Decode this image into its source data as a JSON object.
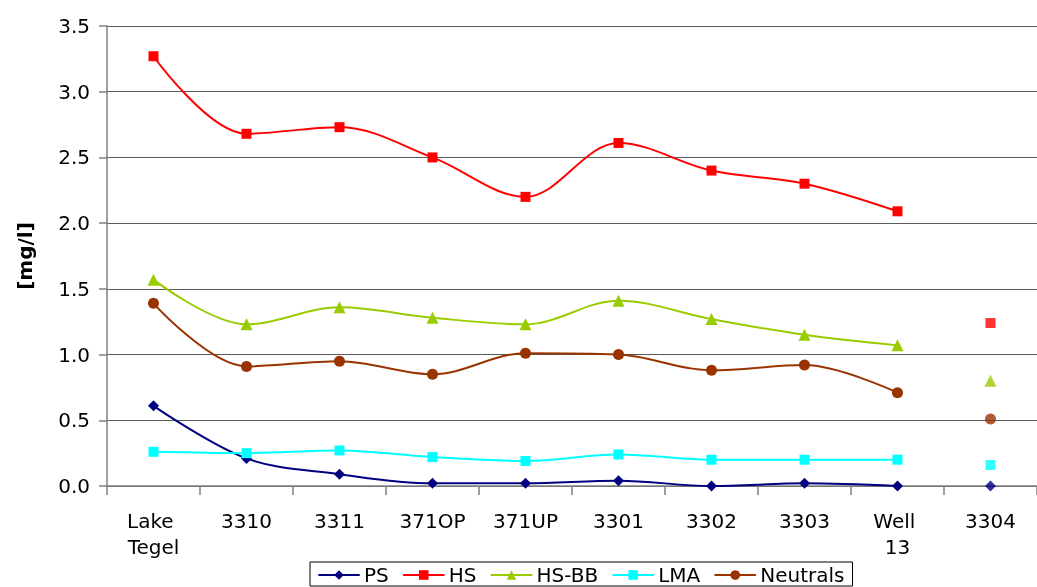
{
  "chart_data": {
    "type": "line",
    "ylabel": "[mg/l]",
    "categories": [
      "Lake Tegel",
      "3310",
      "3311",
      "371OP",
      "371UP",
      "3301",
      "3302",
      "3303",
      "Well 13",
      "3304"
    ],
    "series": [
      {
        "name": "PS",
        "color": "#000080",
        "marker": "diamond",
        "values": [
          0.61,
          0.21,
          0.09,
          0.02,
          0.02,
          0.04,
          0.0,
          0.02,
          0.0,
          null
        ]
      },
      {
        "name": "HS",
        "color": "#ff0000",
        "marker": "square",
        "values": [
          3.27,
          2.68,
          2.73,
          2.5,
          2.2,
          2.61,
          2.4,
          2.3,
          2.09,
          null
        ]
      },
      {
        "name": "HS-BB",
        "color": "#99cc00",
        "marker": "triangle",
        "values": [
          1.57,
          1.23,
          1.36,
          1.28,
          1.23,
          1.41,
          1.27,
          1.15,
          1.07,
          null
        ]
      },
      {
        "name": "LMA",
        "color": "#00ffff",
        "marker": "square",
        "values": [
          0.26,
          0.25,
          0.27,
          0.22,
          0.19,
          0.24,
          0.2,
          0.2,
          0.2,
          null
        ]
      },
      {
        "name": "Neutrals",
        "color": "#993300",
        "marker": "circle",
        "values": [
          1.39,
          0.91,
          0.95,
          0.85,
          1.01,
          1.0,
          0.88,
          0.92,
          0.71,
          null
        ]
      },
      {
        "type": "scatter",
        "color": "#000080",
        "marker": "diamond",
        "values": [
          null,
          null,
          null,
          null,
          null,
          null,
          null,
          null,
          null,
          0.0
        ]
      },
      {
        "type": "scatter",
        "color": "#ff0000",
        "marker": "square",
        "values": [
          null,
          null,
          null,
          null,
          null,
          null,
          null,
          null,
          null,
          1.24
        ]
      },
      {
        "type": "scatter",
        "color": "#99cc00",
        "marker": "triangle",
        "values": [
          null,
          null,
          null,
          null,
          null,
          null,
          null,
          null,
          null,
          0.8
        ]
      },
      {
        "type": "scatter",
        "color": "#00ffff",
        "marker": "square",
        "values": [
          null,
          null,
          null,
          null,
          null,
          null,
          null,
          null,
          null,
          0.16
        ]
      },
      {
        "type": "scatter",
        "color": "#993300",
        "marker": "circle",
        "values": [
          null,
          null,
          null,
          null,
          null,
          null,
          null,
          null,
          null,
          0.51
        ]
      }
    ],
    "ylim": [
      0,
      3.5
    ],
    "yticks": [
      {
        "value": 0,
        "label": "0.0"
      },
      0.5,
      {
        "value": 1,
        "label": "1.0"
      },
      1.5,
      {
        "value": 2,
        "label": "2.0"
      },
      2.5,
      {
        "value": 3,
        "label": "3.0"
      },
      3.5
    ],
    "grid": "y",
    "legend": "bottom",
    "line_style": "solid"
  }
}
